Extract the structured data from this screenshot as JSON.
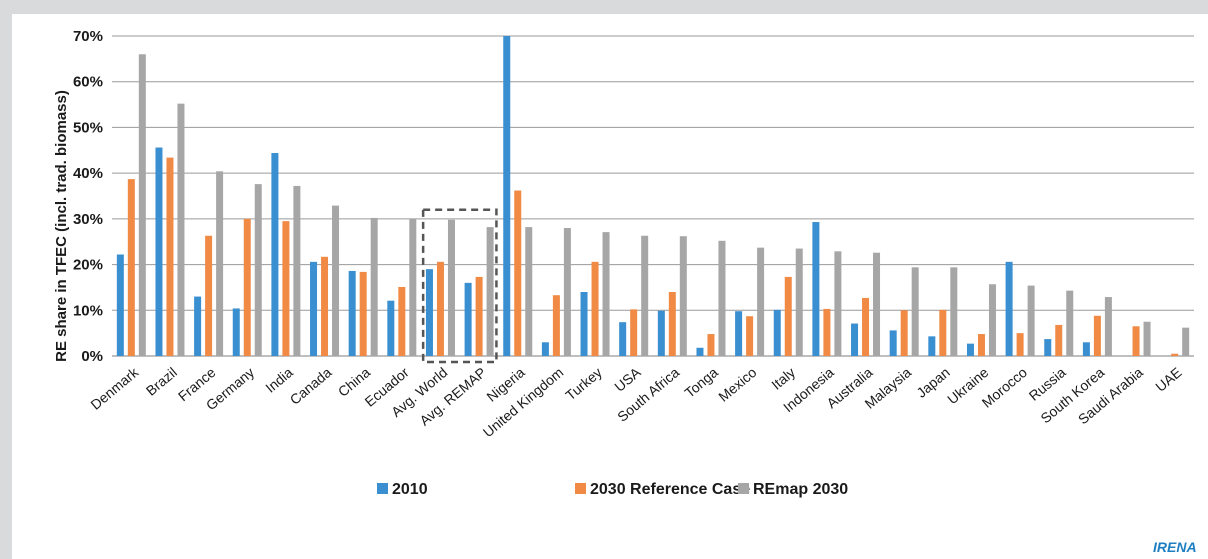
{
  "chart_data": {
    "type": "bar",
    "ylabel": "RE share in TFEC (incl. trad. biomass)",
    "xlabel": "",
    "ylim": [
      0,
      70
    ],
    "yticks": [
      0,
      10,
      20,
      30,
      40,
      50,
      60,
      70
    ],
    "ytick_labels": [
      "0%",
      "10%",
      "20%",
      "30%",
      "40%",
      "50%",
      "60%",
      "70%"
    ],
    "grid": "horizontal",
    "legend_position": "bottom",
    "categories": [
      "Denmark",
      "Brazil",
      "France",
      "Germany",
      "India",
      "Canada",
      "China",
      "Ecuador",
      "Avg. World",
      "Avg. REMAP",
      "Nigeria",
      "United Kingdom",
      "Turkey",
      "USA",
      "South Africa",
      "Tonga",
      "Mexico",
      "Italy",
      "Indonesia",
      "Australia",
      "Malaysia",
      "Japan",
      "Ukraine",
      "Morocco",
      "Russia",
      "South Korea",
      "Saudi Arabia",
      "UAE"
    ],
    "series": [
      {
        "name": "2010",
        "color": "#3a8fd1",
        "values": [
          22.2,
          45.6,
          13,
          10.4,
          44.4,
          20.6,
          18.6,
          12.1,
          19,
          16,
          70,
          3,
          14,
          7.4,
          9.9,
          1.8,
          9.8,
          10.1,
          29.3,
          7.1,
          5.6,
          4.3,
          2.7,
          20.6,
          3.7,
          3,
          0,
          0
        ]
      },
      {
        "name": "2030 Reference Case",
        "color": "#f08a45",
        "values": [
          38.7,
          43.4,
          26.3,
          30,
          29.5,
          21.7,
          18.4,
          15.1,
          20.6,
          17.3,
          36.2,
          13.3,
          20.6,
          10.2,
          14,
          4.8,
          8.7,
          17.3,
          10.3,
          12.7,
          10,
          10.1,
          4.8,
          5,
          6.8,
          8.8,
          6.5,
          0.5
        ]
      },
      {
        "name": "REmap 2030",
        "color": "#a6a6a6",
        "values": [
          66,
          55.2,
          40.4,
          37.6,
          37.2,
          32.9,
          30.2,
          30,
          29.8,
          28.2,
          28.2,
          28,
          27.1,
          26.3,
          26.2,
          25.2,
          23.7,
          23.5,
          22.9,
          22.6,
          19.4,
          19.4,
          15.7,
          15.4,
          14.3,
          12.9,
          7.5,
          6.2
        ]
      }
    ],
    "highlight": {
      "categories": [
        "Avg. World",
        "Avg. REMAP"
      ],
      "style": "dashed-box"
    }
  },
  "watermark": "IRENA"
}
